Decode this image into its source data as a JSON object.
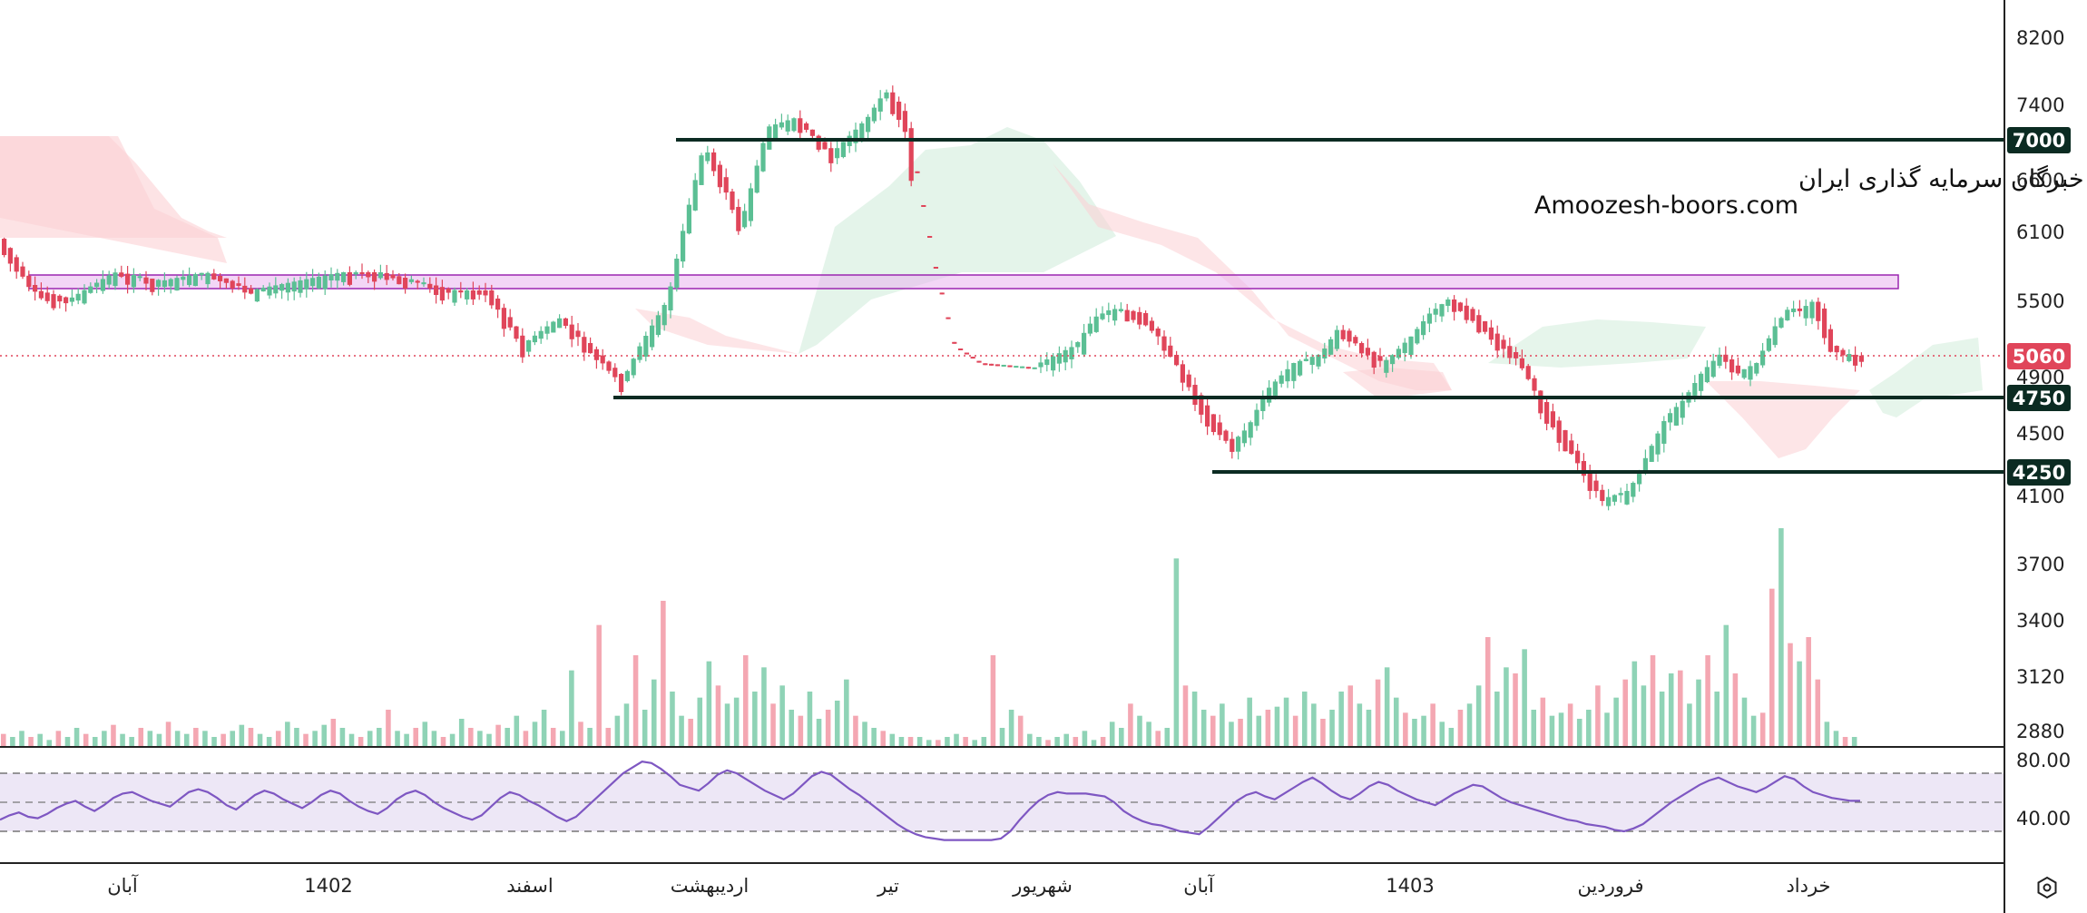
{
  "chart_data": {
    "type": "candlestick",
    "price_axis": {
      "ticks": [
        8200,
        7400,
        7000,
        6600,
        6100,
        5500,
        5060,
        4900,
        4750,
        4500,
        4250,
        4100,
        3700,
        3400,
        3120,
        2880
      ]
    },
    "level_lines": [
      {
        "value": 7000,
        "label": "7000"
      },
      {
        "value": 4750,
        "label": "4750"
      },
      {
        "value": 4250,
        "label": "4250"
      }
    ],
    "last_price": {
      "value": 5060,
      "label": "5060"
    },
    "resistance_zone": {
      "low": 5560,
      "high": 5680
    },
    "time_axis": [
      "آبان",
      "1402",
      "اسفند",
      "اردیبهشت",
      "تیر",
      "شهریور",
      "آبان",
      "1403",
      "فروردین",
      "خرداد"
    ],
    "rsi": {
      "ticks": [
        "80.00",
        "40.00"
      ],
      "band_upper": 70,
      "band_lower": 30,
      "mid": 50,
      "values": [
        38,
        41,
        43,
        40,
        39,
        42,
        46,
        49,
        51,
        47,
        44,
        48,
        53,
        56,
        57,
        54,
        51,
        49,
        47,
        52,
        57,
        59,
        57,
        53,
        48,
        45,
        50,
        55,
        58,
        56,
        52,
        49,
        46,
        50,
        55,
        58,
        56,
        51,
        47,
        44,
        42,
        46,
        52,
        56,
        58,
        55,
        50,
        46,
        43,
        40,
        38,
        41,
        47,
        53,
        57,
        55,
        51,
        48,
        44,
        40,
        37,
        40,
        46,
        52,
        58,
        64,
        70,
        74,
        78,
        77,
        73,
        68,
        62,
        60,
        58,
        63,
        69,
        72,
        70,
        66,
        62,
        58,
        55,
        52,
        56,
        62,
        68,
        71,
        69,
        64,
        59,
        55,
        50,
        45,
        40,
        35,
        31,
        28,
        26,
        25,
        24,
        24,
        24,
        24,
        24,
        24,
        25,
        30,
        38,
        45,
        51,
        55,
        57,
        56,
        56,
        56,
        55,
        54,
        50,
        44,
        40,
        37,
        35,
        34,
        32,
        30,
        29,
        28,
        33,
        39,
        45,
        51,
        55,
        57,
        54,
        52,
        56,
        60,
        64,
        67,
        63,
        58,
        54,
        52,
        56,
        61,
        64,
        62,
        58,
        55,
        52,
        50,
        48,
        52,
        56,
        59,
        62,
        61,
        57,
        53,
        50,
        48,
        46,
        44,
        42,
        40,
        38,
        37,
        35,
        34,
        33,
        31,
        30,
        32,
        35,
        40,
        45,
        50,
        54,
        58,
        62,
        65,
        67,
        64,
        61,
        59,
        57,
        60,
        64,
        68,
        66,
        61,
        57,
        55,
        53,
        52,
        51,
        51
      ]
    },
    "volume": {
      "values": [
        4,
        3,
        5,
        3,
        4,
        2,
        5,
        3,
        6,
        4,
        3,
        5,
        7,
        4,
        3,
        6,
        5,
        4,
        8,
        5,
        4,
        6,
        5,
        3,
        4,
        5,
        7,
        6,
        4,
        3,
        5,
        8,
        6,
        4,
        5,
        7,
        9,
        6,
        4,
        3,
        5,
        6,
        12,
        5,
        4,
        6,
        8,
        5,
        3,
        4,
        9,
        6,
        5,
        4,
        7,
        6,
        10,
        5,
        8,
        12,
        6,
        5,
        25,
        8,
        6,
        40,
        6,
        10,
        14,
        30,
        12,
        22,
        48,
        18,
        10,
        9,
        16,
        28,
        20,
        14,
        16,
        30,
        18,
        26,
        14,
        20,
        12,
        10,
        18,
        9,
        12,
        15,
        22,
        10,
        8,
        6,
        5,
        4,
        3,
        3,
        3,
        2,
        2,
        3,
        4,
        3,
        2,
        3,
        30,
        6,
        12,
        10,
        4,
        3,
        2,
        3,
        4,
        3,
        5,
        2,
        3,
        8,
        6,
        14,
        10,
        8,
        5,
        6,
        62,
        20,
        18,
        12,
        10,
        14,
        8,
        9,
        16,
        10,
        12,
        13,
        16,
        10,
        18,
        14,
        9,
        12,
        18,
        20,
        14,
        12,
        22,
        26,
        16,
        11,
        9,
        10,
        14,
        8,
        6,
        12,
        14,
        20,
        36,
        18,
        26,
        24,
        32,
        12,
        16,
        10,
        11,
        14,
        9,
        12,
        20,
        11,
        16,
        22,
        28,
        20,
        30,
        18,
        24,
        25,
        14,
        22,
        30,
        18,
        40,
        24,
        16,
        10,
        11,
        52,
        72,
        34,
        28,
        36,
        22,
        8,
        5,
        3,
        3
      ]
    }
  },
  "watermark": {
    "line1": "انجمن خبرگان سرمایه گذاری ایران",
    "line2": "Amoozesh-boors.com"
  },
  "colors": {
    "up": "#5bbf94",
    "down": "#e0455a",
    "level_line": "#0b2b22",
    "badge_dark": "#0b2b22",
    "badge_price": "#e0455a",
    "zone_fill": "#e9b5ef",
    "zone_stroke": "#9c27b0",
    "cloud_red": "#fbd0d4",
    "cloud_green": "#cdebd8",
    "rsi_line": "#7e57c2",
    "rsi_band": "#ede7f6"
  },
  "icons": {
    "settings": "hexagon-settings-icon"
  }
}
